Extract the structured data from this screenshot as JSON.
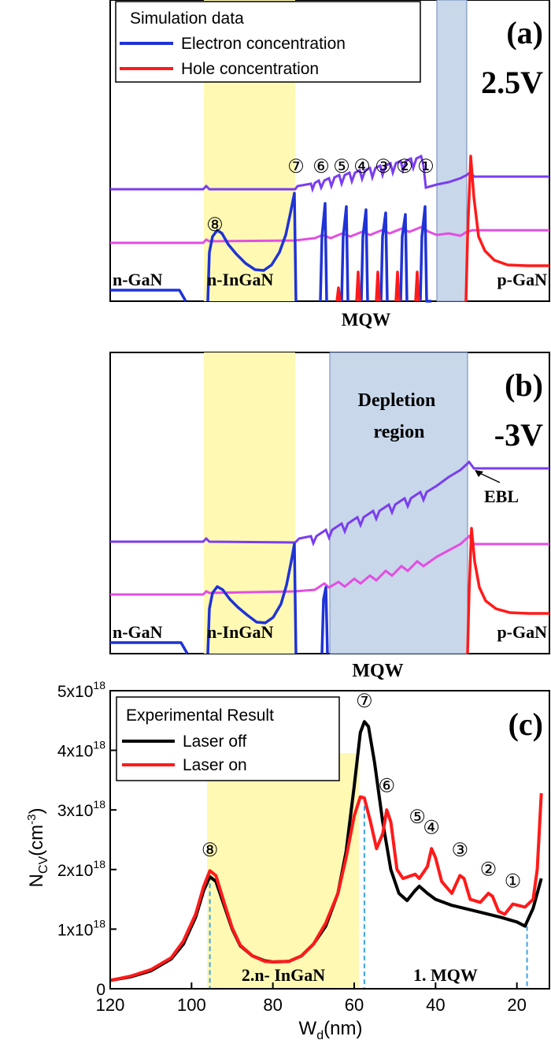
{
  "chart_data": [
    {
      "type": "line",
      "panel_label": "(a)",
      "bias": "2.5V",
      "legend": {
        "title": "Simulation data",
        "entries": [
          {
            "label": "Electron concentration",
            "color": "#1f33d6"
          },
          {
            "label": "Hole concentration",
            "color": "#ff1a1a"
          }
        ],
        "position": "top-left"
      },
      "region_labels": [
        "n-GaN",
        "n-InGaN",
        "MQW",
        "p-GaN"
      ],
      "well_markers": [
        "⑦",
        "⑥",
        "⑤",
        "④",
        "③",
        "②",
        "①",
        "⑧"
      ],
      "shaded_regions": [
        "n-InGaN (yellow)",
        "depletion (blue)"
      ]
    },
    {
      "type": "line",
      "panel_label": "(b)",
      "bias": "-3V",
      "region_labels": [
        "n-GaN",
        "n-InGaN",
        "MQW",
        "p-GaN"
      ],
      "annotations": [
        "Depletion region",
        "EBL"
      ],
      "shaded_regions": [
        "n-InGaN (yellow)",
        "depletion (blue)"
      ]
    },
    {
      "type": "line",
      "panel_label": "(c)",
      "xlabel": "W_d(nm)",
      "ylabel": "N_CV(cm^-3)",
      "xlim": [
        120,
        12
      ],
      "ylim": [
        0,
        5e+18
      ],
      "x_ticks": [
        "120",
        "100",
        "80",
        "60",
        "40",
        "20"
      ],
      "y_ticks": [
        "0",
        "1x10^18",
        "2x10^18",
        "3x10^18",
        "4x10^18",
        "5x10^18"
      ],
      "legend": {
        "title": "Experimental Result",
        "entries": [
          {
            "label": "Laser off",
            "color": "#000000"
          },
          {
            "label": "Laser on",
            "color": "#ff1a1a"
          }
        ],
        "position": "top-left"
      },
      "region_labels": [
        "2.n- InGaN",
        "1. MQW"
      ],
      "well_markers": [
        "⑧",
        "⑦",
        "⑥",
        "⑤",
        "④",
        "③",
        "②",
        "①"
      ],
      "series": [
        {
          "name": "Laser off",
          "color": "#000000",
          "points": [
            [
              120,
              0.14
            ],
            [
              115,
              0.2
            ],
            [
              110,
              0.3
            ],
            [
              105,
              0.5
            ],
            [
              102,
              0.75
            ],
            [
              99,
              1.2
            ],
            [
              97,
              1.65
            ],
            [
              95.5,
              1.88
            ],
            [
              94,
              1.8
            ],
            [
              92,
              1.4
            ],
            [
              90,
              1.0
            ],
            [
              88,
              0.72
            ],
            [
              85,
              0.55
            ],
            [
              82,
              0.47
            ],
            [
              80,
              0.45
            ],
            [
              76,
              0.46
            ],
            [
              73,
              0.55
            ],
            [
              70,
              0.75
            ],
            [
              67,
              1.05
            ],
            [
              64,
              1.6
            ],
            [
              62,
              2.3
            ],
            [
              60,
              3.4
            ],
            [
              58.5,
              4.3
            ],
            [
              57.5,
              4.48
            ],
            [
              56.5,
              4.4
            ],
            [
              55,
              3.8
            ],
            [
              53,
              2.8
            ],
            [
              51,
              2.0
            ],
            [
              49,
              1.6
            ],
            [
              47,
              1.48
            ],
            [
              45,
              1.65
            ],
            [
              44,
              1.72
            ],
            [
              42,
              1.6
            ],
            [
              40,
              1.5
            ],
            [
              36,
              1.4
            ],
            [
              30,
              1.3
            ],
            [
              24,
              1.2
            ],
            [
              20,
              1.12
            ],
            [
              18,
              1.05
            ],
            [
              16,
              1.35
            ],
            [
              14,
              1.85
            ]
          ]
        },
        {
          "name": "Laser on",
          "color": "#ff1a1a",
          "points": [
            [
              120,
              0.14
            ],
            [
              115,
              0.21
            ],
            [
              110,
              0.32
            ],
            [
              105,
              0.52
            ],
            [
              102,
              0.8
            ],
            [
              99,
              1.25
            ],
            [
              97,
              1.72
            ],
            [
              95.5,
              1.98
            ],
            [
              94,
              1.9
            ],
            [
              92,
              1.45
            ],
            [
              90,
              1.02
            ],
            [
              88,
              0.73
            ],
            [
              85,
              0.55
            ],
            [
              82,
              0.46
            ],
            [
              80,
              0.45
            ],
            [
              76,
              0.46
            ],
            [
              73,
              0.55
            ],
            [
              70,
              0.75
            ],
            [
              67,
              1.1
            ],
            [
              64,
              1.6
            ],
            [
              62,
              2.2
            ],
            [
              60,
              2.9
            ],
            [
              58.5,
              3.22
            ],
            [
              57.5,
              3.2
            ],
            [
              56,
              2.8
            ],
            [
              54.5,
              2.35
            ],
            [
              53,
              2.6
            ],
            [
              52,
              3.0
            ],
            [
              51,
              2.8
            ],
            [
              49.5,
              2.0
            ],
            [
              48,
              1.85
            ],
            [
              45,
              1.92
            ],
            [
              44,
              1.85
            ],
            [
              42,
              2.05
            ],
            [
              41,
              2.35
            ],
            [
              40,
              2.2
            ],
            [
              38.5,
              1.8
            ],
            [
              36,
              1.6
            ],
            [
              34,
              1.9
            ],
            [
              33,
              1.85
            ],
            [
              31.5,
              1.5
            ],
            [
              29,
              1.45
            ],
            [
              27,
              1.6
            ],
            [
              26,
              1.55
            ],
            [
              24.5,
              1.3
            ],
            [
              23,
              1.25
            ],
            [
              21,
              1.42
            ],
            [
              18,
              1.37
            ],
            [
              16,
              1.5
            ],
            [
              15,
              2.0
            ],
            [
              14,
              3.28
            ]
          ]
        }
      ]
    }
  ]
}
